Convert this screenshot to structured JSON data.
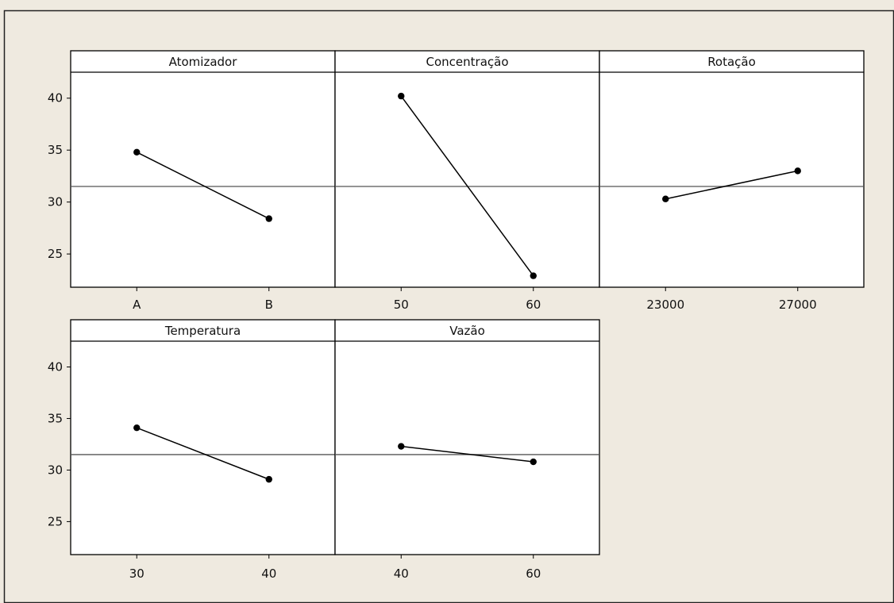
{
  "chart_data": {
    "type": "line",
    "title": "",
    "xlabel": "",
    "ylabel": "",
    "ylim": [
      21.8,
      42.5
    ],
    "y_ticks": [
      "25",
      "30",
      "35",
      "40"
    ],
    "reference_line": 31.5,
    "grid": false,
    "colors": {
      "background": "#EFEAE0",
      "panel": "#FFFFFF",
      "line": "#000000",
      "reference": "#555555"
    },
    "panels": [
      {
        "title": "Atomizador",
        "categories": [
          "A",
          "B"
        ],
        "values": [
          34.8,
          28.4
        ]
      },
      {
        "title": "Concentração",
        "categories": [
          "50",
          "60"
        ],
        "values": [
          40.2,
          22.9
        ]
      },
      {
        "title": "Rotação",
        "categories": [
          "23000",
          "27000"
        ],
        "values": [
          30.3,
          33.0
        ]
      },
      {
        "title": "Temperatura",
        "categories": [
          "30",
          "40"
        ],
        "values": [
          34.1,
          29.1
        ]
      },
      {
        "title": "Vazão",
        "categories": [
          "40",
          "60"
        ],
        "values": [
          32.3,
          30.8
        ]
      }
    ]
  }
}
